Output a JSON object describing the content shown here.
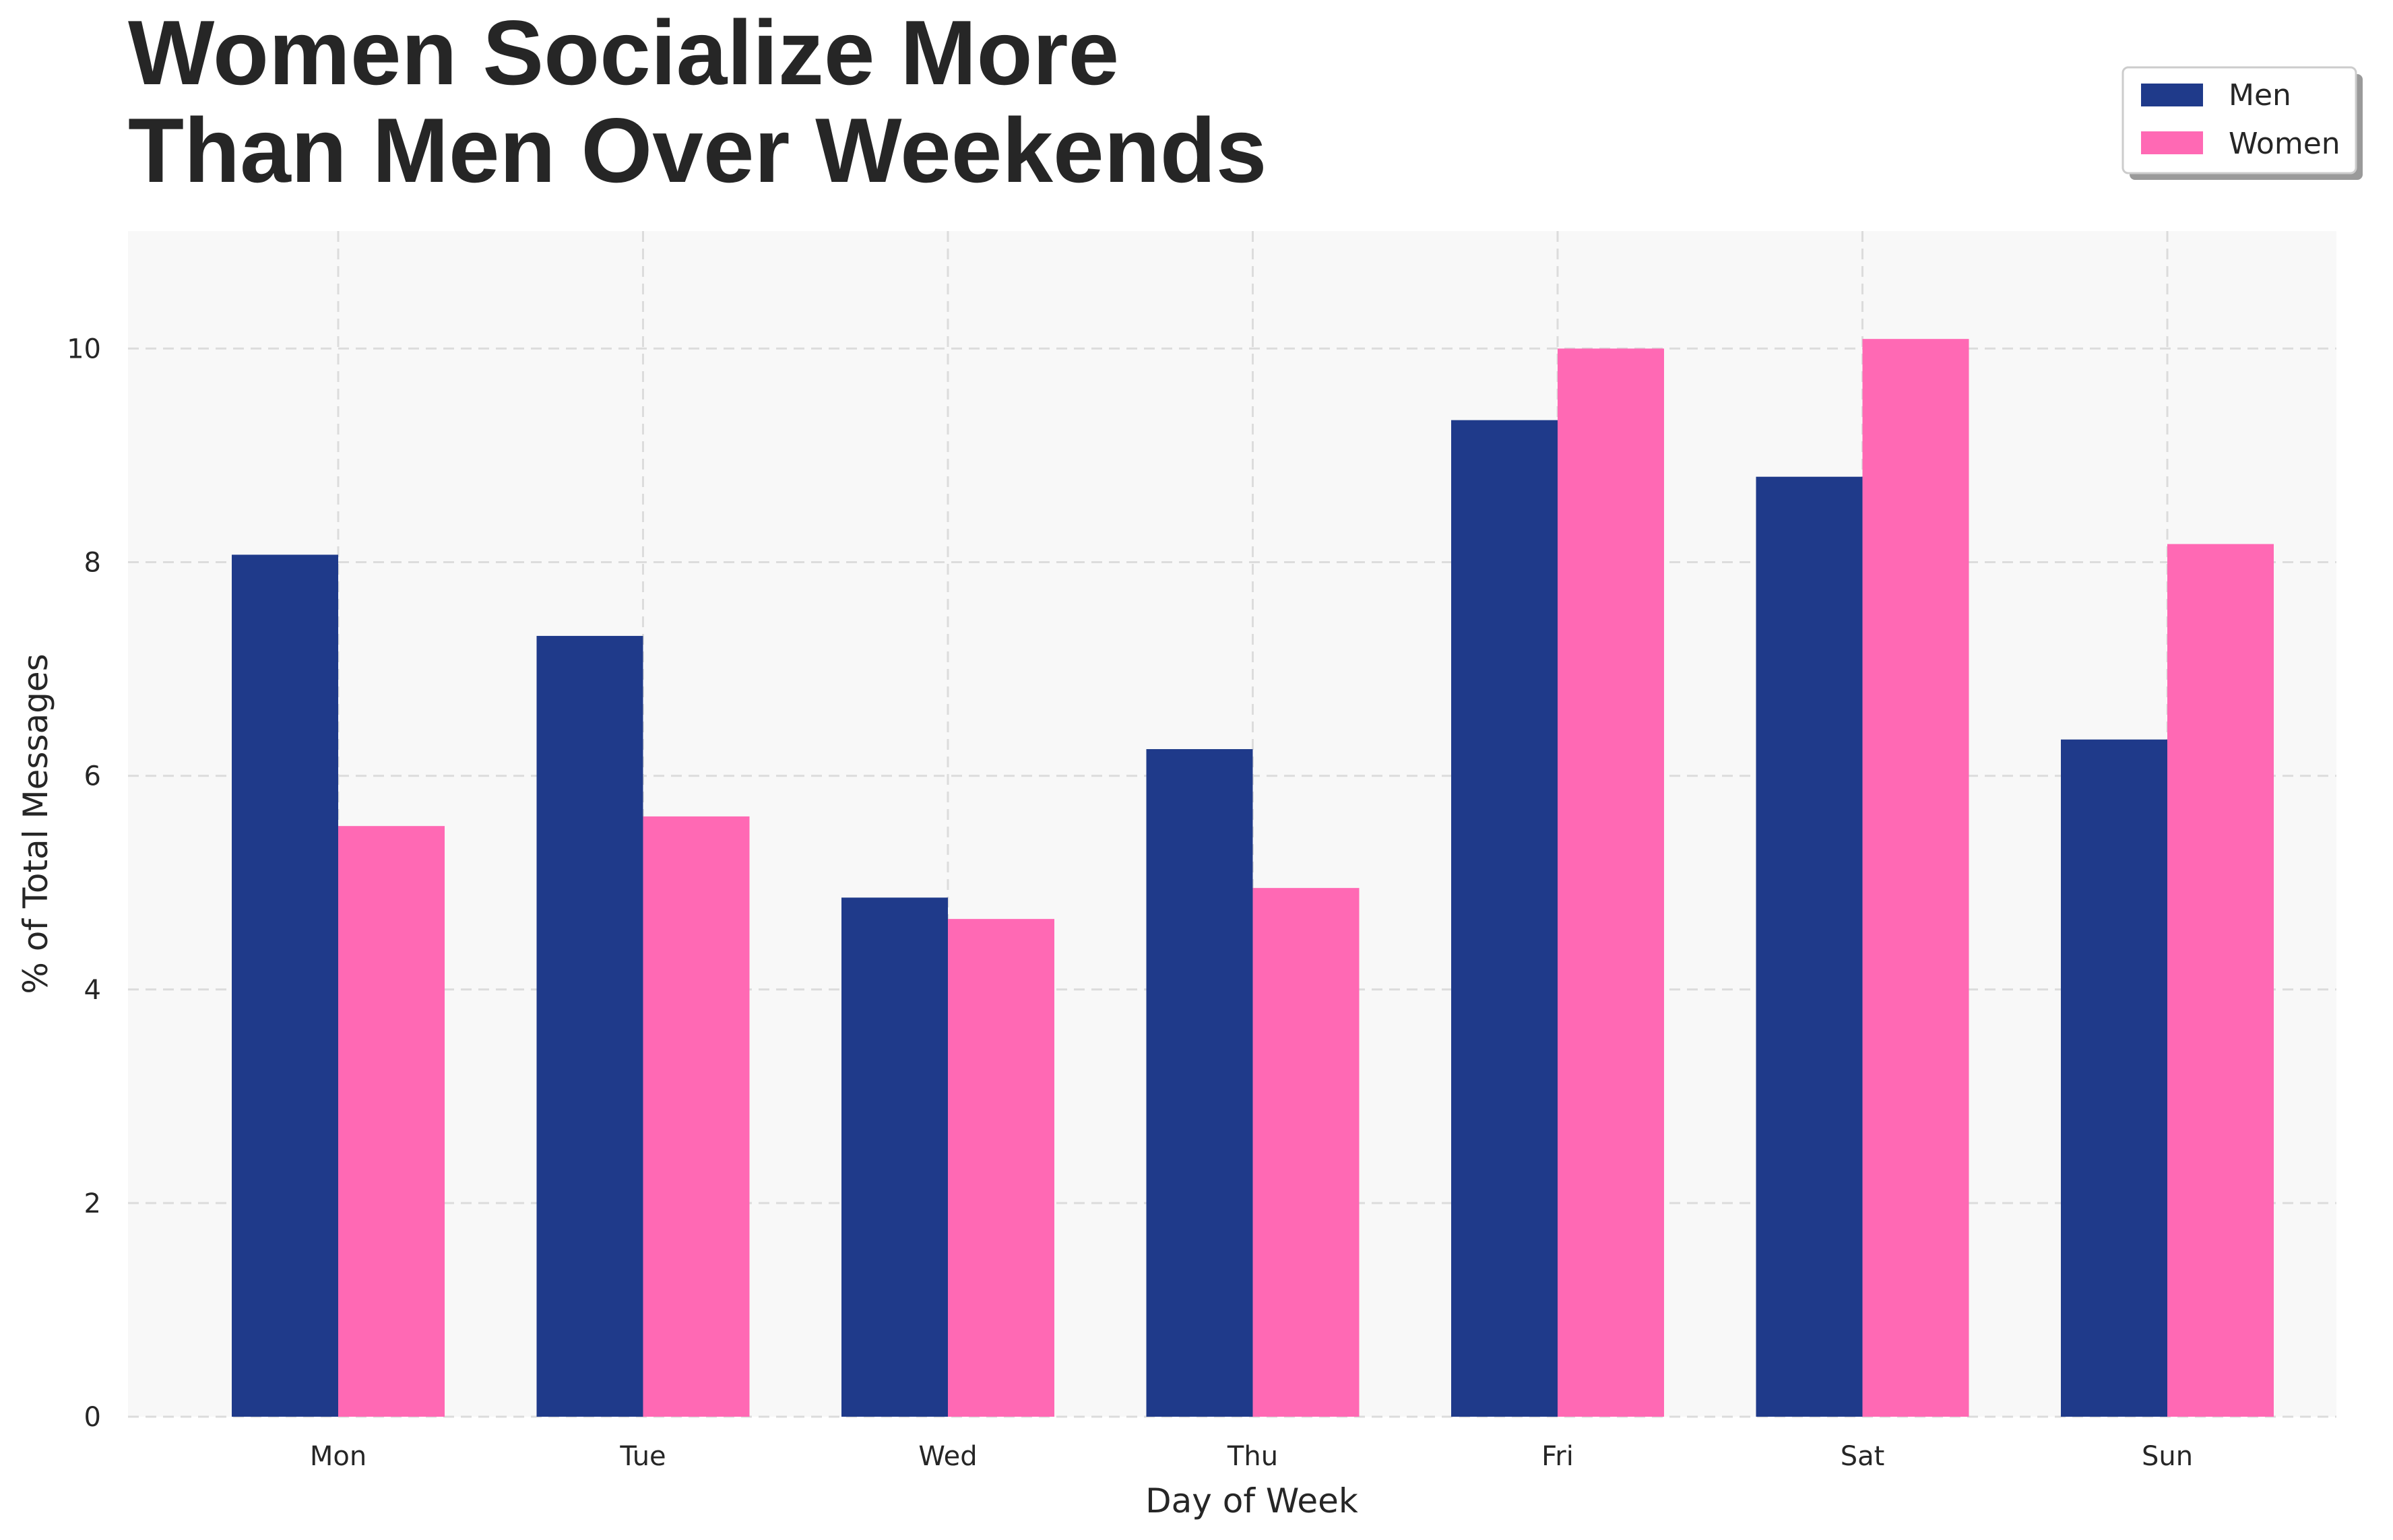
{
  "chart_data": {
    "type": "bar",
    "title_lines": [
      "Women Socialize More",
      "Than Men Over Weekends"
    ],
    "xlabel": "Day of Week",
    "ylabel": "% of Total Messages",
    "categories": [
      "Mon",
      "Tue",
      "Wed",
      "Thu",
      "Fri",
      "Sat",
      "Sun"
    ],
    "series": [
      {
        "name": "Men",
        "color": "#1f3a8a",
        "values": [
          8.07,
          7.31,
          4.86,
          6.25,
          9.33,
          8.8,
          6.34
        ]
      },
      {
        "name": "Women",
        "color": "#ff69b4",
        "values": [
          5.53,
          5.62,
          4.66,
          4.95,
          10.0,
          10.09,
          8.17
        ]
      }
    ],
    "ylim": [
      0,
      11.1
    ],
    "yticks": [
      0,
      2,
      4,
      6,
      8,
      10
    ],
    "grid": true,
    "plot_background": "#f8f8f8",
    "legend_position": "top-right"
  }
}
